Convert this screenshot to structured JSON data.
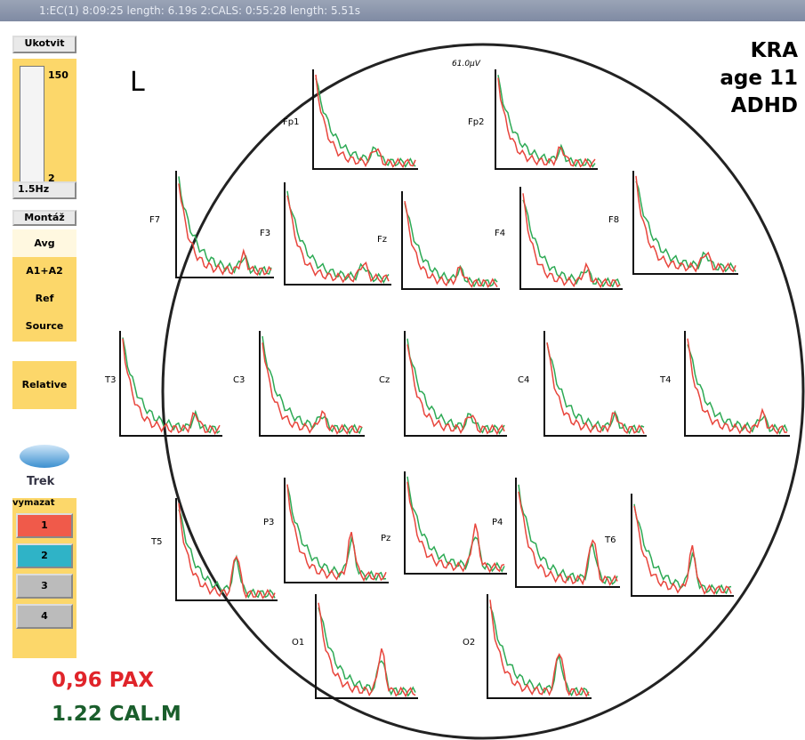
{
  "window": {
    "title": "1:EC(1) 8:09:25 length: 6.19s   2:CALS: 0:55:28 length: 5.51s"
  },
  "sidebar": {
    "zoom_button": "Ukotvit",
    "scale_max": "150",
    "scale_min": "2",
    "band": "1.5Hz",
    "montage_button": "Montáž",
    "montages": [
      "Avg",
      "A1+A2",
      "Ref",
      "Source"
    ],
    "mode": "Relative",
    "track_label": "Trek",
    "clear_label": "vymazat",
    "tracks": [
      "1",
      "2",
      "3",
      "4"
    ]
  },
  "map": {
    "side": "L",
    "scale": "61.0µV",
    "channels": [
      "Fp1",
      "Fp2",
      "F7",
      "F3",
      "Fz",
      "F4",
      "F8",
      "T3",
      "C3",
      "Cz",
      "C4",
      "T4",
      "T5",
      "P3",
      "Pz",
      "P4",
      "T6",
      "O1",
      "O2"
    ]
  },
  "patient": [
    "KRA",
    "age 11",
    "ADHD"
  ],
  "metrics": [
    "0,96 PAX",
    "1.22 CAL.M"
  ]
}
